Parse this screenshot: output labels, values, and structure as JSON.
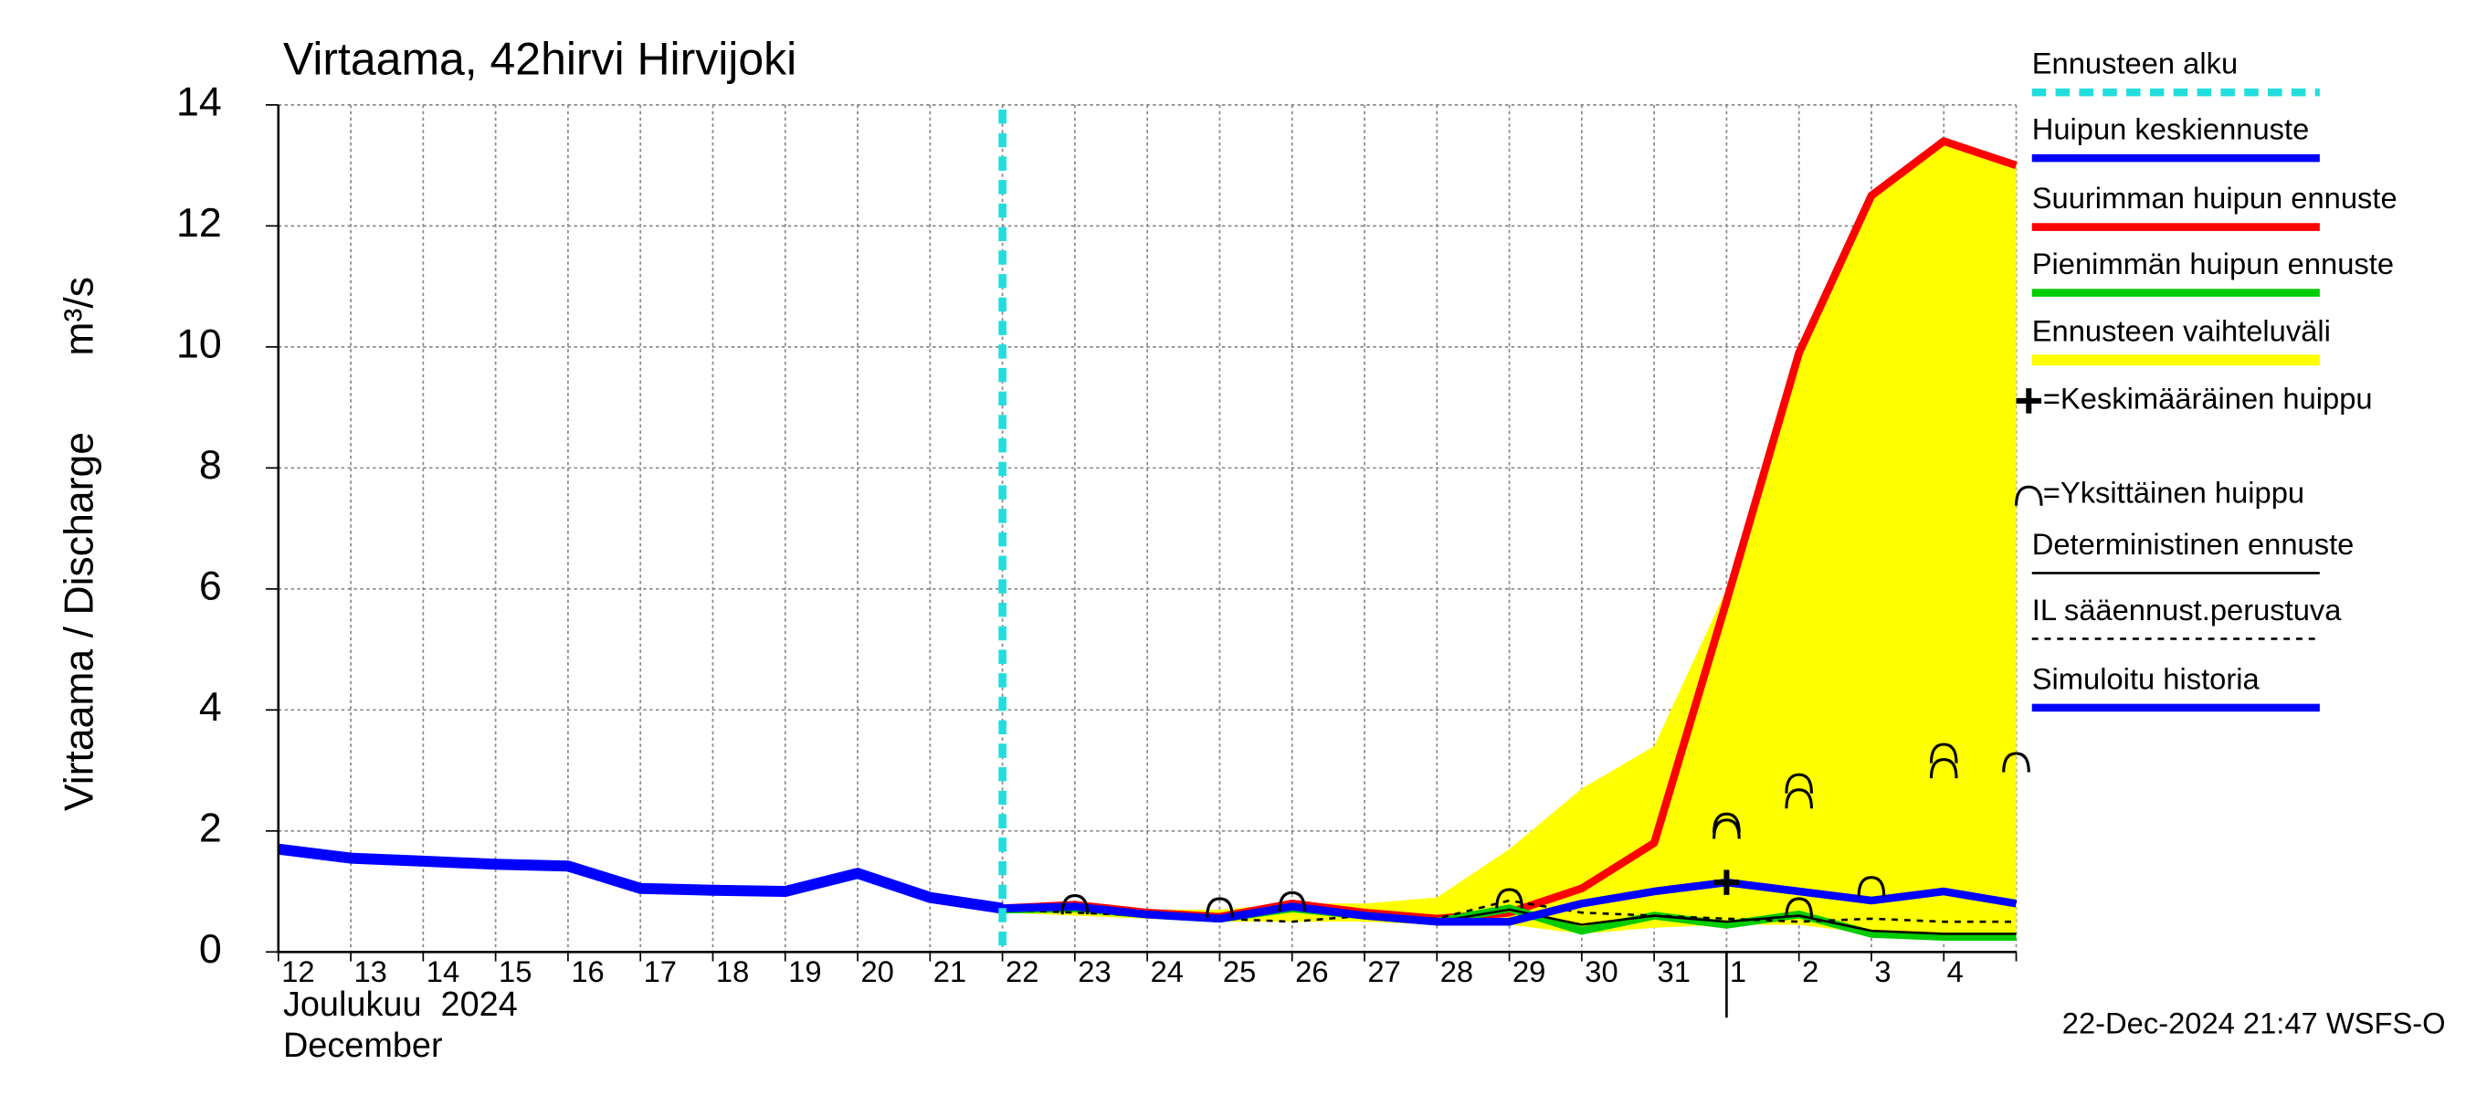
{
  "chart_data": {
    "type": "line",
    "title": "Virtaama, 42hirvi Hirvijoki",
    "y_label": "Virtaama / Discharge",
    "y_unit": "m³/s",
    "month_fi": "Joulukuu  2024",
    "month_en": "December",
    "timestamp": "22-Dec-2024 21:47 WSFS-O",
    "categories": [
      "12",
      "13",
      "14",
      "15",
      "16",
      "17",
      "18",
      "19",
      "20",
      "21",
      "22",
      "23",
      "24",
      "25",
      "26",
      "27",
      "28",
      "29",
      "30",
      "31",
      "1",
      "2",
      "3",
      "4",
      null
    ],
    "ylim": [
      0,
      14
    ],
    "yticks": [
      0,
      2,
      4,
      6,
      8,
      10,
      12,
      14
    ],
    "grid": true,
    "forecast_start": {
      "name": "Ennusteen alku",
      "color": "#22dddd",
      "category": "22"
    },
    "range": {
      "name": "Ennusteen vaihteluväli",
      "color": "#ffff00",
      "lower": [
        null,
        null,
        null,
        null,
        null,
        null,
        null,
        null,
        null,
        null,
        0.65,
        0.6,
        0.55,
        0.5,
        0.5,
        0.5,
        0.45,
        0.45,
        0.3,
        0.4,
        0.45,
        0.45,
        0.3,
        0.25,
        0.25
      ],
      "upper": [
        null,
        null,
        null,
        null,
        null,
        null,
        null,
        null,
        null,
        null,
        0.72,
        0.75,
        0.7,
        0.7,
        0.8,
        0.8,
        0.9,
        1.7,
        2.7,
        3.4,
        6.0,
        10.0,
        12.5,
        13.4,
        13.0
      ]
    },
    "series": [
      {
        "name": "Suurimman huipun ennuste",
        "color": "#ff0000",
        "width": 5,
        "values": [
          null,
          null,
          null,
          null,
          null,
          null,
          null,
          null,
          null,
          null,
          0.72,
          0.78,
          0.65,
          0.58,
          0.8,
          0.65,
          0.55,
          0.65,
          1.05,
          1.8,
          5.8,
          9.9,
          12.5,
          13.4,
          13.0
        ]
      },
      {
        "name": "Pienimmän huipun ennuste",
        "color": "#00cc00",
        "width": 5,
        "values": [
          null,
          null,
          null,
          null,
          null,
          null,
          null,
          null,
          null,
          null,
          0.7,
          0.72,
          0.62,
          0.55,
          0.72,
          0.6,
          0.5,
          0.72,
          0.35,
          0.6,
          0.45,
          0.62,
          0.3,
          0.25,
          0.25
        ]
      },
      {
        "name": "Deterministinen ennuste",
        "color": "#000000",
        "width": 1.5,
        "values": [
          null,
          null,
          null,
          null,
          null,
          null,
          null,
          null,
          null,
          null,
          0.72,
          0.75,
          0.62,
          0.55,
          0.78,
          0.6,
          0.5,
          0.7,
          0.45,
          0.6,
          0.5,
          0.6,
          0.35,
          0.3,
          0.3
        ]
      },
      {
        "name": "IL sääennust.perustuva",
        "color": "#000000",
        "width": 1.5,
        "dashed": true,
        "values": [
          null,
          null,
          null,
          null,
          null,
          null,
          null,
          null,
          null,
          null,
          0.7,
          0.65,
          0.6,
          0.55,
          0.5,
          0.6,
          0.55,
          0.85,
          0.65,
          0.6,
          0.55,
          0.5,
          0.55,
          0.5,
          0.5
        ]
      },
      {
        "name": "Huipun keskiennuste",
        "color": "#0000ff",
        "width": 5,
        "values": [
          null,
          null,
          null,
          null,
          null,
          null,
          null,
          null,
          null,
          null,
          0.72,
          0.75,
          0.62,
          0.55,
          0.75,
          0.6,
          0.5,
          0.5,
          0.8,
          1.0,
          1.15,
          1.0,
          0.85,
          1.0,
          0.8
        ]
      },
      {
        "name": "Simuloitu historia",
        "color": "#0000ff",
        "width": 7,
        "values": [
          1.7,
          1.55,
          1.5,
          1.45,
          1.42,
          1.05,
          1.02,
          1.0,
          1.3,
          0.9,
          0.72,
          null,
          null,
          null,
          null,
          null,
          null,
          null,
          null,
          null,
          null,
          null,
          null,
          null,
          null
        ]
      }
    ],
    "mean_peak": {
      "name": "=Keskimääräinen huippu",
      "values": [
        null,
        null,
        null,
        null,
        null,
        null,
        null,
        null,
        null,
        null,
        null,
        null,
        null,
        null,
        null,
        null,
        null,
        null,
        null,
        null,
        1.15,
        null,
        null,
        null,
        null
      ]
    },
    "single_peaks": {
      "name": "=Yksittäinen huippu",
      "values": [
        [],
        [],
        [],
        [],
        [],
        [],
        [],
        [],
        [],
        [],
        [],
        [
          0.75
        ],
        [],
        [
          0.7
        ],
        [
          0.8
        ],
        [],
        [],
        [
          0.85
        ],
        [],
        [],
        [
          2.0,
          2.1
        ],
        [
          0.7,
          2.5,
          2.75
        ],
        [
          1.05
        ],
        [
          3.0,
          3.25
        ],
        [
          3.1
        ]
      ]
    },
    "legend_order": [
      "Ennusteen alku",
      "Huipun keskiennuste",
      "Suurimman huipun ennuste",
      "Pienimmän huipun ennuste",
      "Ennusteen vaihteluväli",
      "=Keskimääräinen huippu",
      "=Yksittäinen huippu",
      "Deterministinen ennuste",
      "IL sääennust.perustuva",
      "Simuloitu historia"
    ]
  }
}
